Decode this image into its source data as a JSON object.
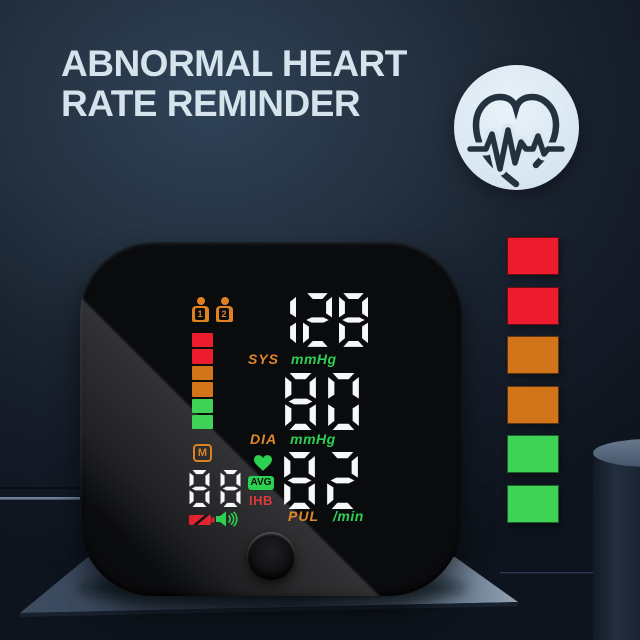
{
  "header": {
    "title_line1": "ABNORMAL HEART",
    "title_line2": "RATE REMINDER"
  },
  "hero_icon": "heartbeat-pulse-icon",
  "device": {
    "users": [
      {
        "label": "1"
      },
      {
        "label": "2"
      }
    ],
    "risk_bar": {
      "colors": [
        "#ec1c2e",
        "#ec1c2e",
        "#d2741a",
        "#d2741a",
        "#3ed357",
        "#3ed357"
      ]
    },
    "readings": {
      "sys": {
        "value": "128",
        "label": "SYS",
        "unit": "mmHg"
      },
      "dia": {
        "value": "80",
        "label": "DIA",
        "unit": "mmHg"
      },
      "pul": {
        "value": "82",
        "label": "PUL",
        "unit": "/min"
      }
    },
    "memory": {
      "icon_label": "M",
      "value": "88"
    },
    "badges": {
      "avg": "AVG",
      "ihb": "IHB"
    },
    "icons": [
      "user-1-icon",
      "user-2-icon",
      "memory-icon",
      "heart-icon",
      "battery-low-icon",
      "speaker-icon",
      "start-button"
    ]
  },
  "scale": {
    "colors": [
      "#ec1c2e",
      "#ec1c2e",
      "#d2741a",
      "#d2741a",
      "#3ed357",
      "#3ed357"
    ]
  },
  "colors": {
    "background": "#1b2634",
    "title_text": "#d5e3ed",
    "device_body": "#0a0b0d",
    "digit_white": "#f5f7f9",
    "label_orange": "#e0872c",
    "label_green": "#2dd156",
    "alert_red": "#d93b3b",
    "badge_bg": "#dbe8f2"
  }
}
